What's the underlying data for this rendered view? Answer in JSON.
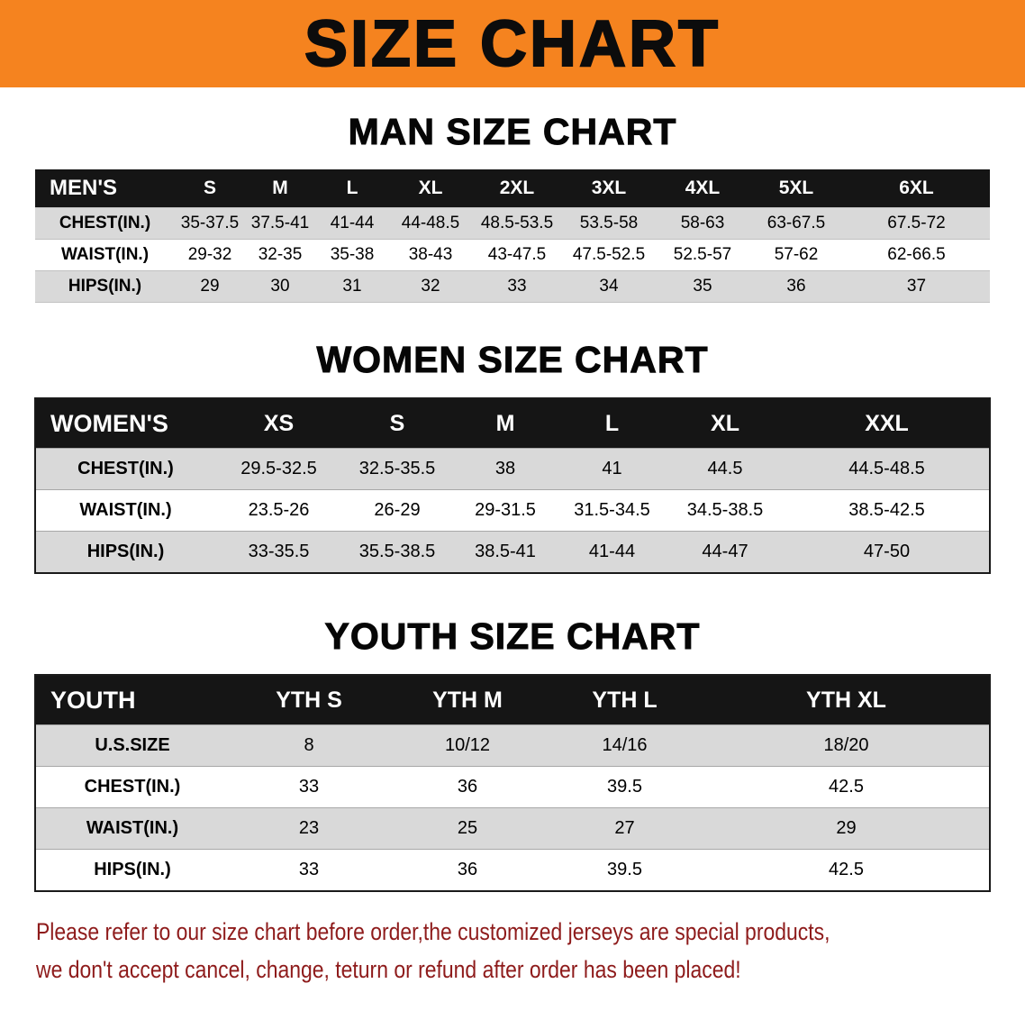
{
  "banner": {
    "title": "SIZE CHART"
  },
  "colors": {
    "banner_bg": "#F5831F",
    "header_bg": "#151515",
    "row_shade": "#D9D9D9",
    "note_color": "#8E1B1B"
  },
  "men": {
    "heading": "MAN SIZE CHART",
    "label": "MEN'S",
    "sizes": [
      "S",
      "M",
      "L",
      "XL",
      "2XL",
      "3XL",
      "4XL",
      "5XL",
      "6XL"
    ],
    "rows": [
      {
        "label": "CHEST(IN.)",
        "values": [
          "35-37.5",
          "37.5-41",
          "41-44",
          "44-48.5",
          "48.5-53.5",
          "53.5-58",
          "58-63",
          "63-67.5",
          "67.5-72"
        ]
      },
      {
        "label": "WAIST(IN.)",
        "values": [
          "29-32",
          "32-35",
          "35-38",
          "38-43",
          "43-47.5",
          "47.5-52.5",
          "52.5-57",
          "57-62",
          "62-66.5"
        ]
      },
      {
        "label": "HIPS(IN.)",
        "values": [
          "29",
          "30",
          "31",
          "32",
          "33",
          "34",
          "35",
          "36",
          "37"
        ]
      }
    ]
  },
  "women": {
    "heading": "WOMEN SIZE CHART",
    "label": "WOMEN'S",
    "sizes": [
      "XS",
      "S",
      "M",
      "L",
      "XL",
      "XXL"
    ],
    "rows": [
      {
        "label": "CHEST(IN.)",
        "values": [
          "29.5-32.5",
          "32.5-35.5",
          "38",
          "41",
          "44.5",
          "44.5-48.5"
        ]
      },
      {
        "label": "WAIST(IN.)",
        "values": [
          "23.5-26",
          "26-29",
          "29-31.5",
          "31.5-34.5",
          "34.5-38.5",
          "38.5-42.5"
        ]
      },
      {
        "label": "HIPS(IN.)",
        "values": [
          "33-35.5",
          "35.5-38.5",
          "38.5-41",
          "41-44",
          "44-47",
          "47-50"
        ]
      }
    ]
  },
  "youth": {
    "heading": "YOUTH SIZE CHART",
    "label": "YOUTH",
    "sizes": [
      "YTH S",
      "YTH M",
      "YTH L",
      "YTH XL"
    ],
    "rows": [
      {
        "label": "U.S.SIZE",
        "values": [
          "8",
          "10/12",
          "14/16",
          "18/20"
        ]
      },
      {
        "label": "CHEST(IN.)",
        "values": [
          "33",
          "36",
          "39.5",
          "42.5"
        ]
      },
      {
        "label": "WAIST(IN.)",
        "values": [
          "23",
          "25",
          "27",
          "29"
        ]
      },
      {
        "label": "HIPS(IN.)",
        "values": [
          "33",
          "36",
          "39.5",
          "42.5"
        ]
      }
    ]
  },
  "note": {
    "line1": "Please refer to our size chart before order,the customized jerseys are special products,",
    "line2": "we don't accept cancel, change, teturn or refund after order has been placed!"
  }
}
